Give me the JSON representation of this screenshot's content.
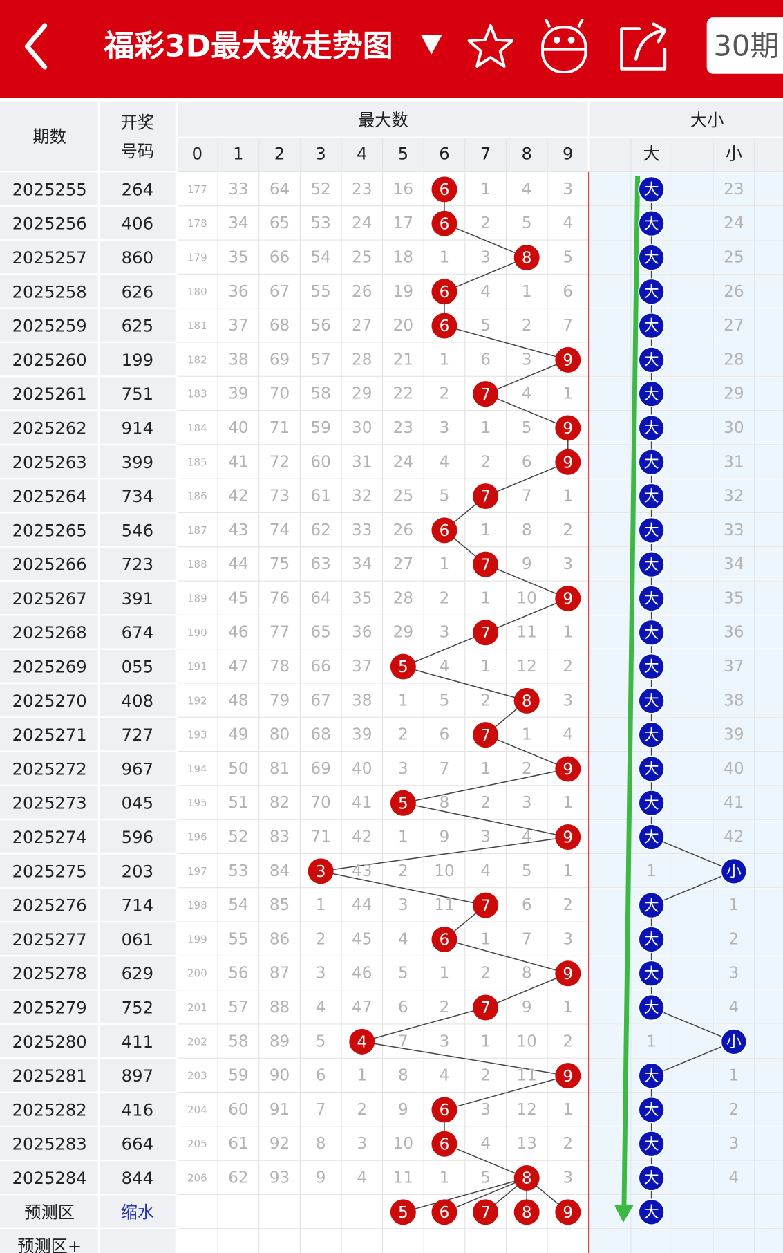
{
  "header": {
    "title": "福彩3D最大数走势图",
    "period_button": "30期"
  },
  "table": {
    "columns": {
      "issue": "期数",
      "number": [
        "开奖",
        "号码"
      ],
      "max_group": "最大数",
      "digits": [
        0,
        1,
        2,
        3,
        4,
        5,
        6,
        7,
        8,
        9
      ],
      "size_group": "大小",
      "size_labels": [
        "大",
        "小"
      ]
    },
    "rows": [
      {
        "issue": "2025255",
        "number": "264",
        "cells": [
          177,
          33,
          64,
          52,
          23,
          16,
          6,
          1,
          4,
          3
        ],
        "hits": [
          6
        ],
        "size": [
          "大",
          23
        ],
        "size_hit": [
          0
        ]
      },
      {
        "issue": "2025256",
        "number": "406",
        "cells": [
          178,
          34,
          65,
          53,
          24,
          17,
          6,
          2,
          5,
          4
        ],
        "hits": [
          6
        ],
        "size": [
          "大",
          24
        ],
        "size_hit": [
          0
        ]
      },
      {
        "issue": "2025257",
        "number": "860",
        "cells": [
          179,
          35,
          66,
          54,
          25,
          18,
          1,
          3,
          8,
          5
        ],
        "hits": [
          8
        ],
        "size": [
          "大",
          25
        ],
        "size_hit": [
          0
        ]
      },
      {
        "issue": "2025258",
        "number": "626",
        "cells": [
          180,
          36,
          67,
          55,
          26,
          19,
          6,
          4,
          1,
          6
        ],
        "hits": [
          6
        ],
        "size": [
          "大",
          26
        ],
        "size_hit": [
          0
        ]
      },
      {
        "issue": "2025259",
        "number": "625",
        "cells": [
          181,
          37,
          68,
          56,
          27,
          20,
          6,
          5,
          2,
          7
        ],
        "hits": [
          6
        ],
        "size": [
          "大",
          27
        ],
        "size_hit": [
          0
        ]
      },
      {
        "issue": "2025260",
        "number": "199",
        "cells": [
          182,
          38,
          69,
          57,
          28,
          21,
          1,
          6,
          3,
          9
        ],
        "hits": [
          9
        ],
        "size": [
          "大",
          28
        ],
        "size_hit": [
          0
        ]
      },
      {
        "issue": "2025261",
        "number": "751",
        "cells": [
          183,
          39,
          70,
          58,
          29,
          22,
          2,
          7,
          4,
          1
        ],
        "hits": [
          7
        ],
        "size": [
          "大",
          29
        ],
        "size_hit": [
          0
        ]
      },
      {
        "issue": "2025262",
        "number": "914",
        "cells": [
          184,
          40,
          71,
          59,
          30,
          23,
          3,
          1,
          5,
          9
        ],
        "hits": [
          9
        ],
        "size": [
          "大",
          30
        ],
        "size_hit": [
          0
        ]
      },
      {
        "issue": "2025263",
        "number": "399",
        "cells": [
          185,
          41,
          72,
          60,
          31,
          24,
          4,
          2,
          6,
          9
        ],
        "hits": [
          9
        ],
        "size": [
          "大",
          31
        ],
        "size_hit": [
          0
        ]
      },
      {
        "issue": "2025264",
        "number": "734",
        "cells": [
          186,
          42,
          73,
          61,
          32,
          25,
          5,
          7,
          7,
          1
        ],
        "hits": [
          7
        ],
        "size": [
          "大",
          32
        ],
        "size_hit": [
          0
        ]
      },
      {
        "issue": "2025265",
        "number": "546",
        "cells": [
          187,
          43,
          74,
          62,
          33,
          26,
          6,
          1,
          8,
          2
        ],
        "hits": [
          6
        ],
        "size": [
          "大",
          33
        ],
        "size_hit": [
          0
        ]
      },
      {
        "issue": "2025266",
        "number": "723",
        "cells": [
          188,
          44,
          75,
          63,
          34,
          27,
          1,
          7,
          9,
          3
        ],
        "hits": [
          7
        ],
        "size": [
          "大",
          34
        ],
        "size_hit": [
          0
        ]
      },
      {
        "issue": "2025267",
        "number": "391",
        "cells": [
          189,
          45,
          76,
          64,
          35,
          28,
          2,
          1,
          10,
          9
        ],
        "hits": [
          9
        ],
        "size": [
          "大",
          35
        ],
        "size_hit": [
          0
        ]
      },
      {
        "issue": "2025268",
        "number": "674",
        "cells": [
          190,
          46,
          77,
          65,
          36,
          29,
          3,
          7,
          11,
          1
        ],
        "hits": [
          7
        ],
        "size": [
          "大",
          36
        ],
        "size_hit": [
          0
        ]
      },
      {
        "issue": "2025269",
        "number": "055",
        "cells": [
          191,
          47,
          78,
          66,
          37,
          5,
          4,
          1,
          12,
          2
        ],
        "hits": [
          5
        ],
        "size": [
          "大",
          37
        ],
        "size_hit": [
          0
        ]
      },
      {
        "issue": "2025270",
        "number": "408",
        "cells": [
          192,
          48,
          79,
          67,
          38,
          1,
          5,
          2,
          8,
          3
        ],
        "hits": [
          8
        ],
        "size": [
          "大",
          38
        ],
        "size_hit": [
          0
        ]
      },
      {
        "issue": "2025271",
        "number": "727",
        "cells": [
          193,
          49,
          80,
          68,
          39,
          2,
          6,
          7,
          1,
          4
        ],
        "hits": [
          7
        ],
        "size": [
          "大",
          39
        ],
        "size_hit": [
          0
        ]
      },
      {
        "issue": "2025272",
        "number": "967",
        "cells": [
          194,
          50,
          81,
          69,
          40,
          3,
          7,
          1,
          2,
          9
        ],
        "hits": [
          9
        ],
        "size": [
          "大",
          40
        ],
        "size_hit": [
          0
        ]
      },
      {
        "issue": "2025273",
        "number": "045",
        "cells": [
          195,
          51,
          82,
          70,
          41,
          5,
          8,
          2,
          3,
          1
        ],
        "hits": [
          5
        ],
        "size": [
          "大",
          41
        ],
        "size_hit": [
          0
        ]
      },
      {
        "issue": "2025274",
        "number": "596",
        "cells": [
          196,
          52,
          83,
          71,
          42,
          1,
          9,
          3,
          4,
          9
        ],
        "hits": [
          9
        ],
        "size": [
          "大",
          42
        ],
        "size_hit": [
          0
        ]
      },
      {
        "issue": "2025275",
        "number": "203",
        "cells": [
          197,
          53,
          84,
          3,
          43,
          2,
          10,
          4,
          5,
          1
        ],
        "hits": [
          3
        ],
        "size": [
          1,
          "小"
        ],
        "size_hit": [
          1
        ]
      },
      {
        "issue": "2025276",
        "number": "714",
        "cells": [
          198,
          54,
          85,
          1,
          44,
          3,
          11,
          7,
          6,
          2
        ],
        "hits": [
          7
        ],
        "size": [
          "大",
          1
        ],
        "size_hit": [
          0
        ]
      },
      {
        "issue": "2025277",
        "number": "061",
        "cells": [
          199,
          55,
          86,
          2,
          45,
          4,
          6,
          1,
          7,
          3
        ],
        "hits": [
          6
        ],
        "size": [
          "大",
          2
        ],
        "size_hit": [
          0
        ]
      },
      {
        "issue": "2025278",
        "number": "629",
        "cells": [
          200,
          56,
          87,
          3,
          46,
          5,
          1,
          2,
          8,
          9
        ],
        "hits": [
          9
        ],
        "size": [
          "大",
          3
        ],
        "size_hit": [
          0
        ]
      },
      {
        "issue": "2025279",
        "number": "752",
        "cells": [
          201,
          57,
          88,
          4,
          47,
          6,
          2,
          7,
          9,
          1
        ],
        "hits": [
          7
        ],
        "size": [
          "大",
          4
        ],
        "size_hit": [
          0
        ]
      },
      {
        "issue": "2025280",
        "number": "411",
        "cells": [
          202,
          58,
          89,
          5,
          4,
          7,
          3,
          1,
          10,
          2
        ],
        "hits": [
          4
        ],
        "size": [
          1,
          "小"
        ],
        "size_hit": [
          1
        ]
      },
      {
        "issue": "2025281",
        "number": "897",
        "cells": [
          203,
          59,
          90,
          6,
          1,
          8,
          4,
          2,
          11,
          9
        ],
        "hits": [
          9
        ],
        "size": [
          "大",
          1
        ],
        "size_hit": [
          0
        ]
      },
      {
        "issue": "2025282",
        "number": "416",
        "cells": [
          204,
          60,
          91,
          7,
          2,
          9,
          6,
          3,
          12,
          1
        ],
        "hits": [
          6
        ],
        "size": [
          "大",
          2
        ],
        "size_hit": [
          0
        ]
      },
      {
        "issue": "2025283",
        "number": "664",
        "cells": [
          205,
          61,
          92,
          8,
          3,
          10,
          6,
          4,
          13,
          2
        ],
        "hits": [
          6
        ],
        "size": [
          "大",
          3
        ],
        "size_hit": [
          0
        ]
      },
      {
        "issue": "2025284",
        "number": "844",
        "cells": [
          206,
          62,
          93,
          9,
          4,
          11,
          1,
          5,
          8,
          3
        ],
        "hits": [
          8
        ],
        "size": [
          "大",
          4
        ],
        "size_hit": [
          0
        ]
      }
    ],
    "prediction": {
      "issue": "预测区",
      "number": "缩水",
      "cells": [
        null,
        null,
        null,
        null,
        null,
        5,
        6,
        7,
        8,
        9
      ],
      "hits": [
        5,
        6,
        7,
        8,
        9
      ],
      "size": [
        "大",
        null
      ],
      "size_hit": [
        0
      ]
    },
    "prediction_plus": {
      "issue": "预测区+"
    }
  }
}
